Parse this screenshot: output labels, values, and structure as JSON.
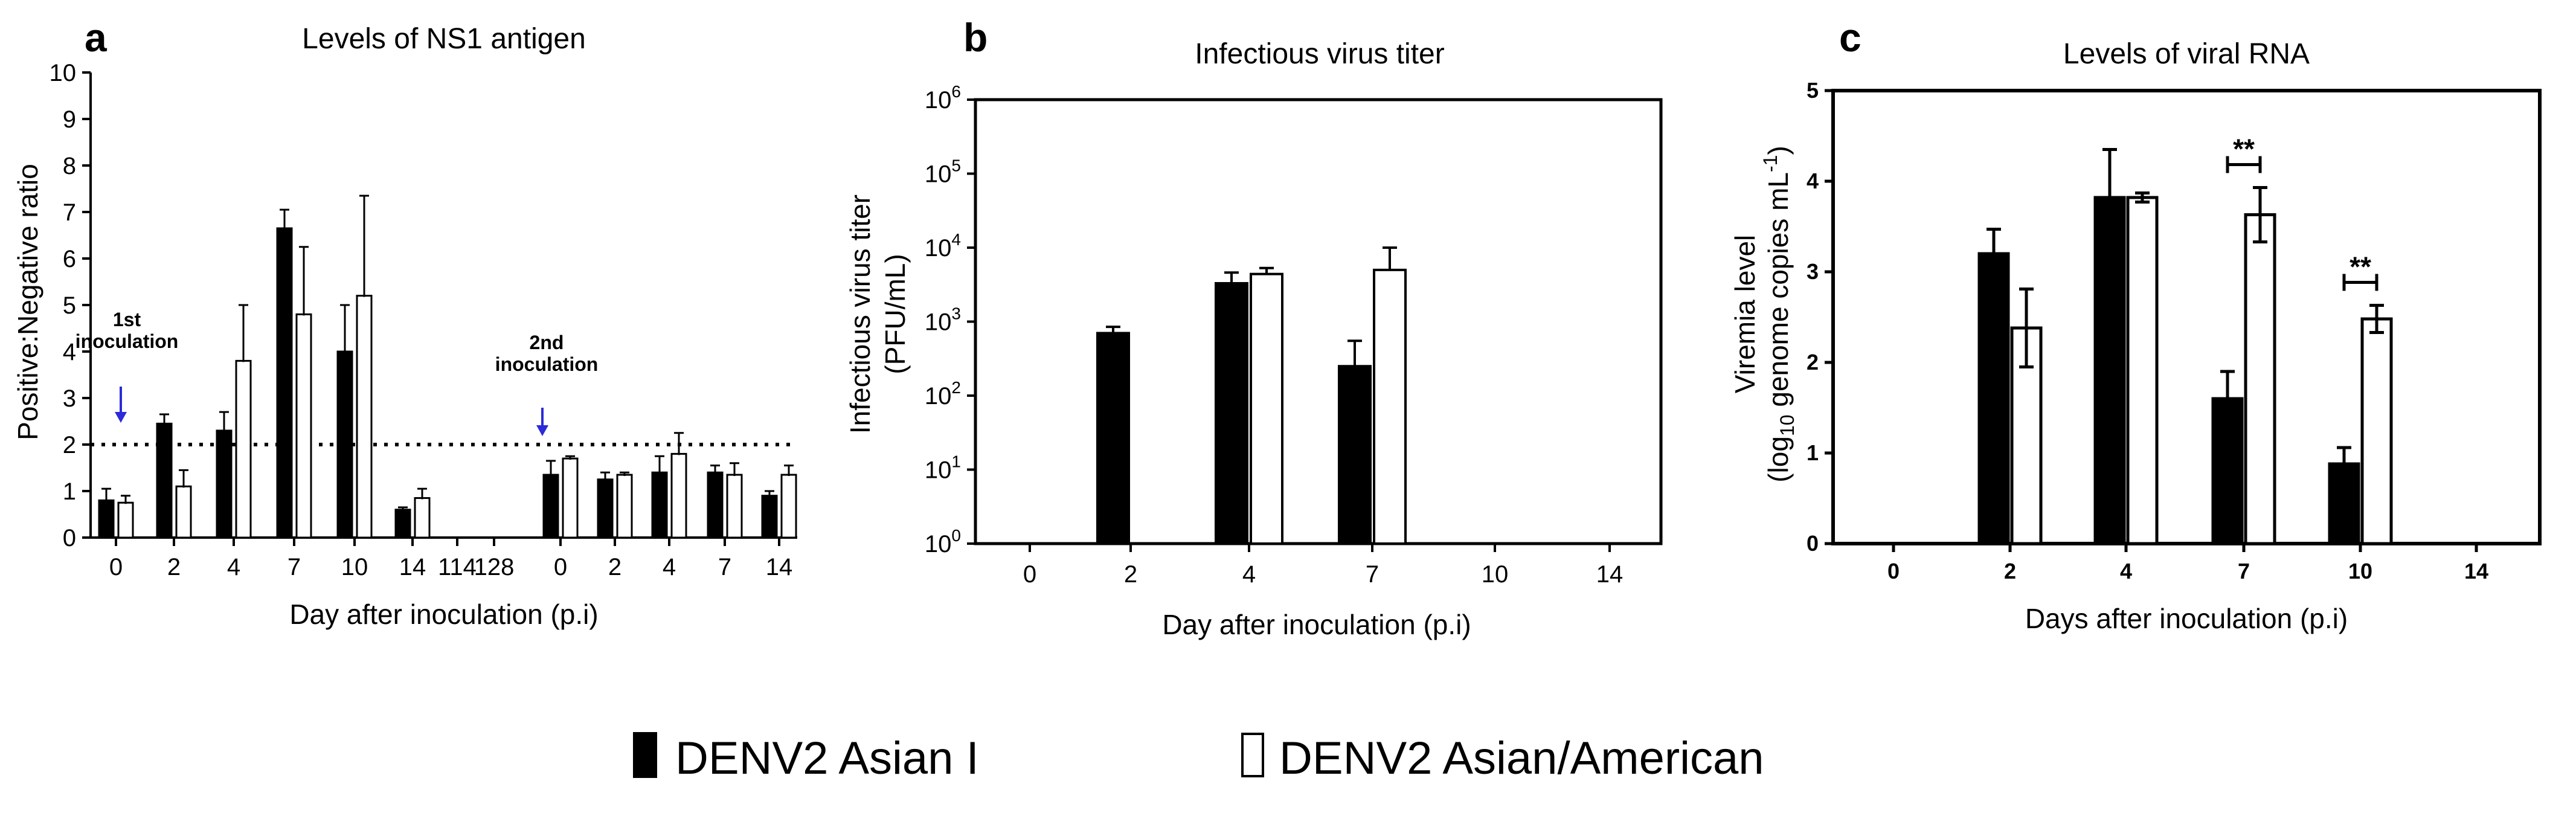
{
  "chart_data": [
    {
      "type": "bar",
      "panel_letter": "a",
      "title": "Levels of NS1 antigen",
      "xlabel": "Day after inoculation (p.i)",
      "ylabel": "Positive:Negative ratio",
      "ylim": [
        0,
        10
      ],
      "yticks": [
        "0",
        "1",
        "2",
        "3",
        "4",
        "5",
        "6",
        "7",
        "8",
        "9",
        "10"
      ],
      "categories": [
        "0",
        "2",
        "4",
        "7",
        "10",
        "14",
        "114",
        "128",
        "0",
        "2",
        "4",
        "7",
        "14"
      ],
      "series": [
        {
          "name": "DENV2 Asian I",
          "values": [
            0.8,
            2.45,
            2.3,
            6.65,
            4.0,
            0.6,
            null,
            null,
            1.35,
            1.25,
            1.4,
            1.4,
            0.9
          ],
          "errors": [
            0.25,
            0.2,
            0.4,
            0.4,
            1.0,
            0.05,
            null,
            null,
            0.3,
            0.15,
            0.35,
            0.15,
            0.1
          ]
        },
        {
          "name": "DENV2 Asian/American",
          "values": [
            0.75,
            1.1,
            3.8,
            4.8,
            5.2,
            0.85,
            null,
            null,
            1.7,
            1.35,
            1.8,
            1.35,
            1.35
          ],
          "errors": [
            0.15,
            0.35,
            1.2,
            1.45,
            2.15,
            0.2,
            null,
            null,
            0.05,
            0.05,
            0.45,
            0.25,
            0.2
          ]
        }
      ],
      "threshold": 2,
      "annotations": [
        {
          "text": "1st",
          "text2": "inoculation",
          "at_category_index": 0
        },
        {
          "text": "2nd",
          "text2": "inoculation",
          "at_category_index": 8
        }
      ]
    },
    {
      "type": "bar",
      "panel_letter": "b",
      "title": "Infectious virus titer",
      "xlabel": "Day after inoculation (p.i)",
      "ylabel": "Infectious virus titer",
      "ylabel2": "(PFU/mL)",
      "yscale": "log",
      "ylim": [
        1,
        1000000
      ],
      "yticks_exp": [
        "0",
        "1",
        "2",
        "3",
        "4",
        "5",
        "6"
      ],
      "ytick_base": "10",
      "categories": [
        "0",
        "2",
        "4",
        "7",
        "10",
        "14"
      ],
      "series": [
        {
          "name": "DENV2 Asian I",
          "values": [
            null,
            700,
            3300,
            250,
            null,
            null
          ],
          "err_high": [
            null,
            850,
            4600,
            550,
            null,
            null
          ]
        },
        {
          "name": "DENV2 Asian/American",
          "values": [
            null,
            null,
            4400,
            5000,
            null,
            null
          ],
          "err_high": [
            null,
            null,
            5300,
            10000,
            null,
            null
          ]
        }
      ]
    },
    {
      "type": "bar",
      "panel_letter": "c",
      "title": "Levels of viral RNA",
      "xlabel": "Days after inoculation (p.i)",
      "ylabel": "Viremia level",
      "ylabel2_pre": "(log",
      "ylabel2_sub": "10",
      "ylabel2_mid": " genome copies mL",
      "ylabel2_sup": "-1",
      "ylabel2_post": ")",
      "ylim": [
        0,
        5
      ],
      "yticks": [
        "0",
        "1",
        "2",
        "3",
        "4",
        "5"
      ],
      "categories": [
        "0",
        "2",
        "4",
        "7",
        "10",
        "14"
      ],
      "series": [
        {
          "name": "DENV2 Asian I",
          "values": [
            null,
            3.2,
            3.82,
            1.6,
            0.88,
            null
          ],
          "errors": [
            null,
            0.27,
            0.53,
            0.3,
            0.18,
            null
          ]
        },
        {
          "name": "DENV2 Asian/American",
          "values": [
            null,
            2.38,
            3.82,
            3.63,
            2.48,
            null
          ],
          "errors": [
            null,
            0.43,
            0.05,
            0.3,
            0.15,
            null
          ]
        }
      ],
      "significance": [
        {
          "category_index": 3,
          "label": "**"
        },
        {
          "category_index": 4,
          "label": "**"
        }
      ]
    }
  ],
  "legend": {
    "items": [
      {
        "label": "DENV2 Asian I",
        "fill": "#000000"
      },
      {
        "label": "DENV2 Asian/American",
        "fill": "#ffffff"
      }
    ]
  },
  "colors": {
    "bar_dark": "#000000",
    "bar_light": "#ffffff",
    "arrow": "#2b2bd8",
    "axis": "#000000"
  }
}
